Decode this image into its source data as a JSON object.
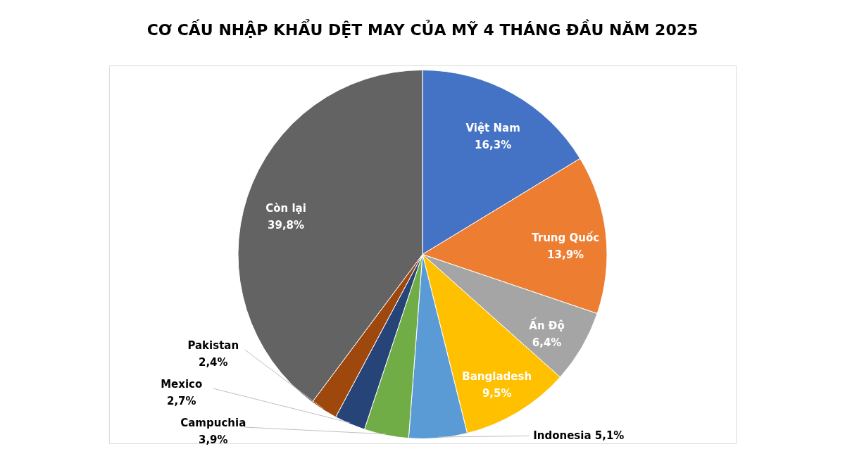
{
  "chart_data": {
    "type": "pie",
    "title": "CƠ CẤU NHẬP KHẨU DỆT MAY CỦA MỸ 4 THÁNG ĐẦU NĂM 2025",
    "categories": [
      "Việt Nam",
      "Trung Quốc",
      "Ấn Độ",
      "Bangladesh",
      "Indonesia",
      "Campuchia",
      "Mexico",
      "Pakistan",
      "Còn lại"
    ],
    "values": [
      16.3,
      13.9,
      6.4,
      9.5,
      5.1,
      3.9,
      2.7,
      2.4,
      39.8
    ],
    "colors": [
      "#4472c4",
      "#ed7d31",
      "#a5a5a5",
      "#ffc000",
      "#5b9bd5",
      "#70ad47",
      "#264478",
      "#9e480e",
      "#636363"
    ],
    "value_labels": [
      "16,3%",
      "13,9%",
      "6,4%",
      "9,5%",
      "5,1%",
      "3,9%",
      "2,7%",
      "2,4%",
      "39,8%"
    ]
  }
}
